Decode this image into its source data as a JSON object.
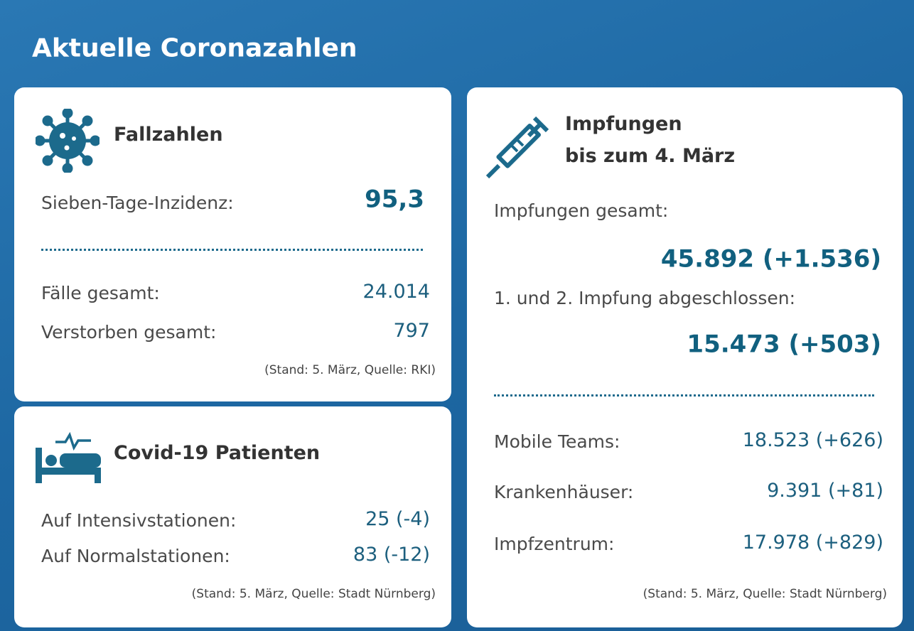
{
  "title": "Aktuelle Coronazahlen",
  "cases": {
    "heading": "Fallzahlen",
    "incidence": {
      "label": "Sieben-Tage-Inzidenz:",
      "value": "95,3"
    },
    "rows": [
      {
        "label": "Fälle gesamt:",
        "value": "24.014"
      },
      {
        "label": "Verstorben gesamt:",
        "value": "797"
      }
    ],
    "source": "(Stand: 5. März, Quelle: RKI)"
  },
  "patients": {
    "heading": "Covid-19 Patienten",
    "rows": [
      {
        "label": "Auf Intensivstationen:",
        "value": "25 (-4)"
      },
      {
        "label": "Auf Normalstationen:",
        "value": "83 (-12)"
      }
    ],
    "source": "(Stand: 5. März, Quelle: Stadt Nürnberg)"
  },
  "vaccinations": {
    "heading": [
      "Impfungen",
      "bis zum 4. März"
    ],
    "total": {
      "label": "Impfungen gesamt:",
      "value": "45.892 (+1.536)"
    },
    "completed": {
      "label": "1. und 2. Impfung abgeschlossen:",
      "value": "15.473 (+503)"
    },
    "rows": [
      {
        "label": "Mobile Teams:",
        "value": "18.523 (+626)"
      },
      {
        "label": "Krankenhäuser:",
        "value": "9.391 (+81)"
      },
      {
        "label": "Impfzentrum:",
        "value": "17.978 (+829)"
      }
    ],
    "source": "(Stand: 5. März, Quelle: Stadt Nürnberg)"
  }
}
